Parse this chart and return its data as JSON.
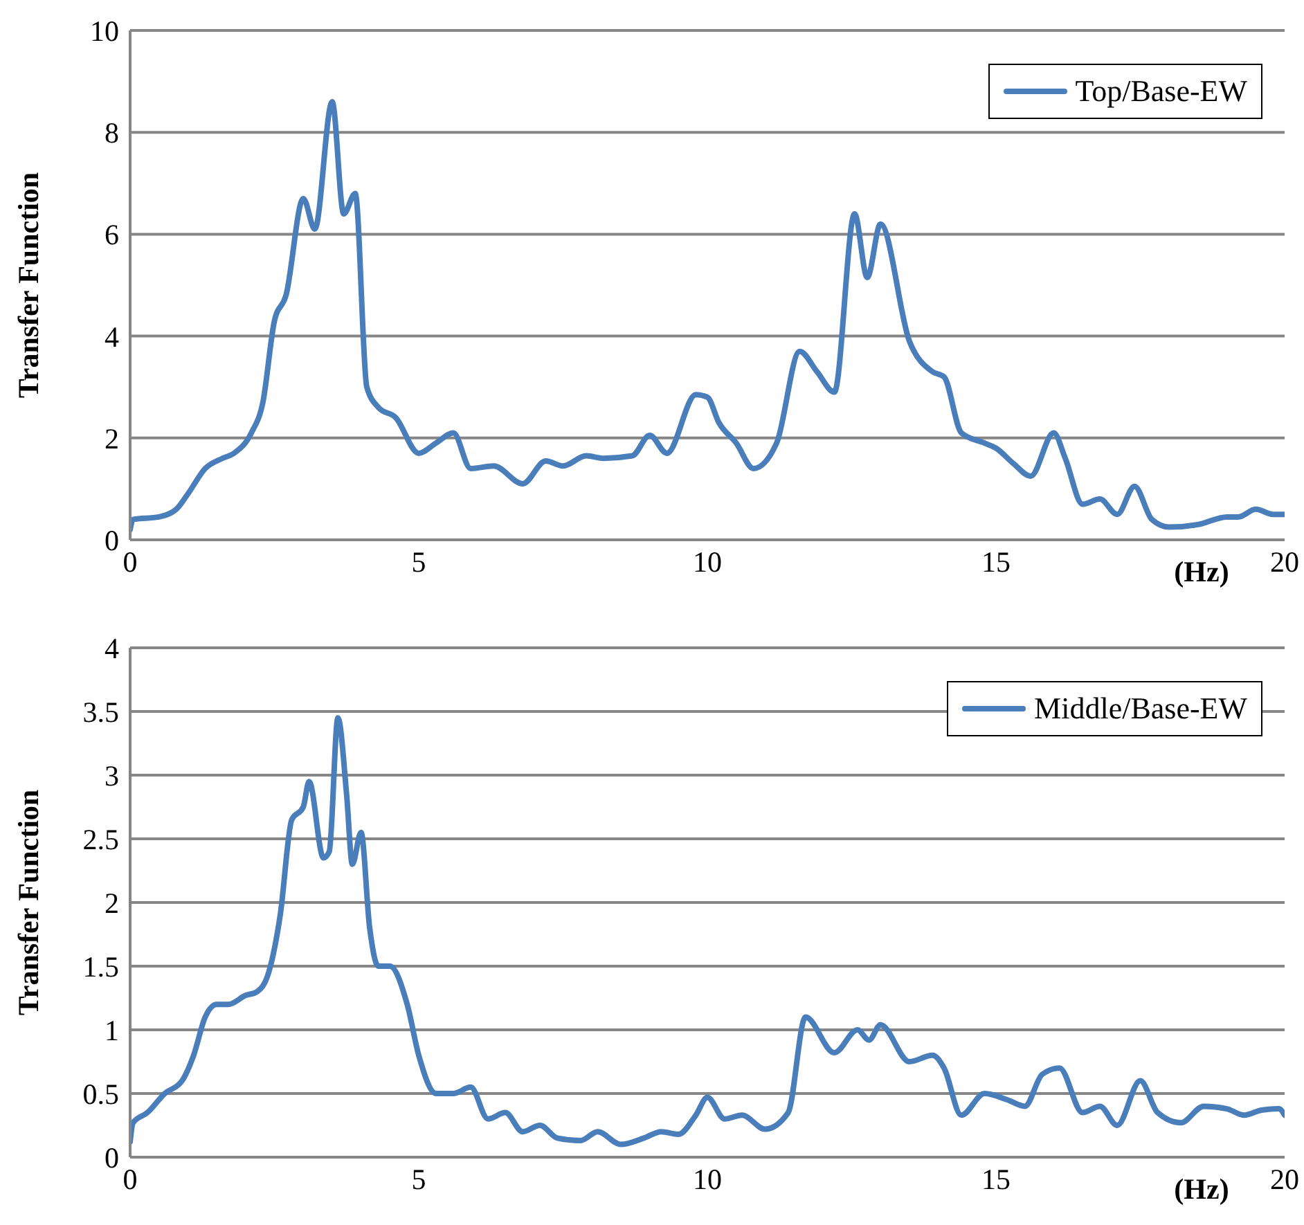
{
  "chart_data": [
    {
      "type": "line",
      "ylabel": "Transfer Function",
      "xlabel": "(Hz)",
      "xlim": [
        0,
        20
      ],
      "xticks": [
        0,
        5,
        10,
        15,
        20
      ],
      "ylim": [
        0,
        10
      ],
      "yticks": [
        0,
        2,
        4,
        6,
        8,
        10
      ],
      "grid": "y",
      "legend": "top right",
      "marker": "none",
      "line_style": "solid",
      "series": [
        {
          "name": "Top/Base-EW",
          "color": "#4a7ebb",
          "x": [
            0,
            0.05,
            0.5,
            0.8,
            1.0,
            1.3,
            1.6,
            1.8,
            2.1,
            2.3,
            2.5,
            2.7,
            3.0,
            3.2,
            3.5,
            3.7,
            3.9,
            4.1,
            4.3,
            4.6,
            5.0,
            5.3,
            5.6,
            5.9,
            6.3,
            6.8,
            7.2,
            7.5,
            7.9,
            8.2,
            8.7,
            9.0,
            9.3,
            9.8,
            10.0,
            10.2,
            10.5,
            10.8,
            11.2,
            11.6,
            11.9,
            12.2,
            12.55,
            12.77,
            13.0,
            13.5,
            13.9,
            14.1,
            14.4,
            14.8,
            15.0,
            15.3,
            15.6,
            16.0,
            16.2,
            16.5,
            16.8,
            17.1,
            17.4,
            17.7,
            18.0,
            18.5,
            19.0,
            19.2,
            19.5,
            19.8,
            20
          ],
          "values": [
            0.2,
            0.4,
            0.45,
            0.6,
            0.9,
            1.4,
            1.6,
            1.7,
            2.1,
            2.7,
            4.3,
            4.8,
            6.7,
            6.1,
            8.6,
            6.4,
            6.8,
            3.0,
            2.6,
            2.4,
            1.7,
            1.9,
            2.1,
            1.4,
            1.45,
            1.1,
            1.55,
            1.45,
            1.65,
            1.6,
            1.65,
            2.05,
            1.7,
            2.85,
            2.8,
            2.3,
            1.9,
            1.4,
            1.9,
            3.7,
            3.3,
            2.9,
            6.4,
            5.15,
            6.2,
            3.9,
            3.3,
            3.2,
            2.1,
            1.9,
            1.8,
            1.5,
            1.25,
            2.1,
            1.6,
            0.7,
            0.8,
            0.5,
            1.05,
            0.4,
            0.25,
            0.3,
            0.45,
            0.45,
            0.6,
            0.5,
            0.5
          ]
        }
      ]
    },
    {
      "type": "line",
      "ylabel": "Transfer Function",
      "xlabel": "(Hz)",
      "xlim": [
        0,
        20
      ],
      "xticks": [
        0,
        5,
        10,
        15,
        20
      ],
      "ylim": [
        0,
        4
      ],
      "yticks": [
        0,
        0.5,
        1,
        1.5,
        2,
        2.5,
        3,
        3.5,
        4
      ],
      "grid": "y",
      "legend": "top right",
      "marker": "none",
      "line_style": "solid",
      "series": [
        {
          "name": "Middle/Base-EW",
          "color": "#4a7ebb",
          "x": [
            0,
            0.05,
            0.3,
            0.6,
            0.9,
            1.1,
            1.3,
            1.5,
            1.7,
            2.0,
            2.2,
            2.4,
            2.6,
            2.8,
            3.0,
            3.1,
            3.35,
            3.45,
            3.6,
            3.75,
            3.85,
            4.0,
            4.15,
            4.3,
            4.5,
            4.8,
            5.0,
            5.3,
            5.6,
            5.9,
            6.2,
            6.5,
            6.8,
            7.1,
            7.4,
            7.8,
            8.1,
            8.5,
            8.9,
            9.2,
            9.5,
            9.8,
            10.0,
            10.3,
            10.6,
            11.0,
            11.4,
            11.7,
            12.2,
            12.6,
            12.8,
            13.0,
            13.5,
            13.9,
            14.1,
            14.4,
            14.8,
            15.2,
            15.5,
            15.8,
            16.1,
            16.5,
            16.8,
            17.1,
            17.5,
            17.8,
            18.2,
            18.6,
            19.0,
            19.3,
            19.6,
            19.9,
            20
          ],
          "values": [
            0.12,
            0.27,
            0.35,
            0.5,
            0.6,
            0.8,
            1.1,
            1.2,
            1.2,
            1.27,
            1.3,
            1.45,
            1.9,
            2.65,
            2.75,
            2.95,
            2.35,
            2.4,
            3.45,
            2.85,
            2.3,
            2.55,
            1.8,
            1.5,
            1.5,
            1.2,
            0.8,
            0.5,
            0.5,
            0.55,
            0.3,
            0.35,
            0.2,
            0.25,
            0.15,
            0.13,
            0.2,
            0.1,
            0.15,
            0.2,
            0.18,
            0.33,
            0.47,
            0.3,
            0.33,
            0.22,
            0.35,
            1.1,
            0.82,
            1.0,
            0.92,
            1.04,
            0.75,
            0.8,
            0.7,
            0.33,
            0.5,
            0.45,
            0.4,
            0.65,
            0.7,
            0.35,
            0.4,
            0.25,
            0.6,
            0.35,
            0.27,
            0.4,
            0.38,
            0.33,
            0.37,
            0.38,
            0.33
          ]
        }
      ]
    }
  ]
}
